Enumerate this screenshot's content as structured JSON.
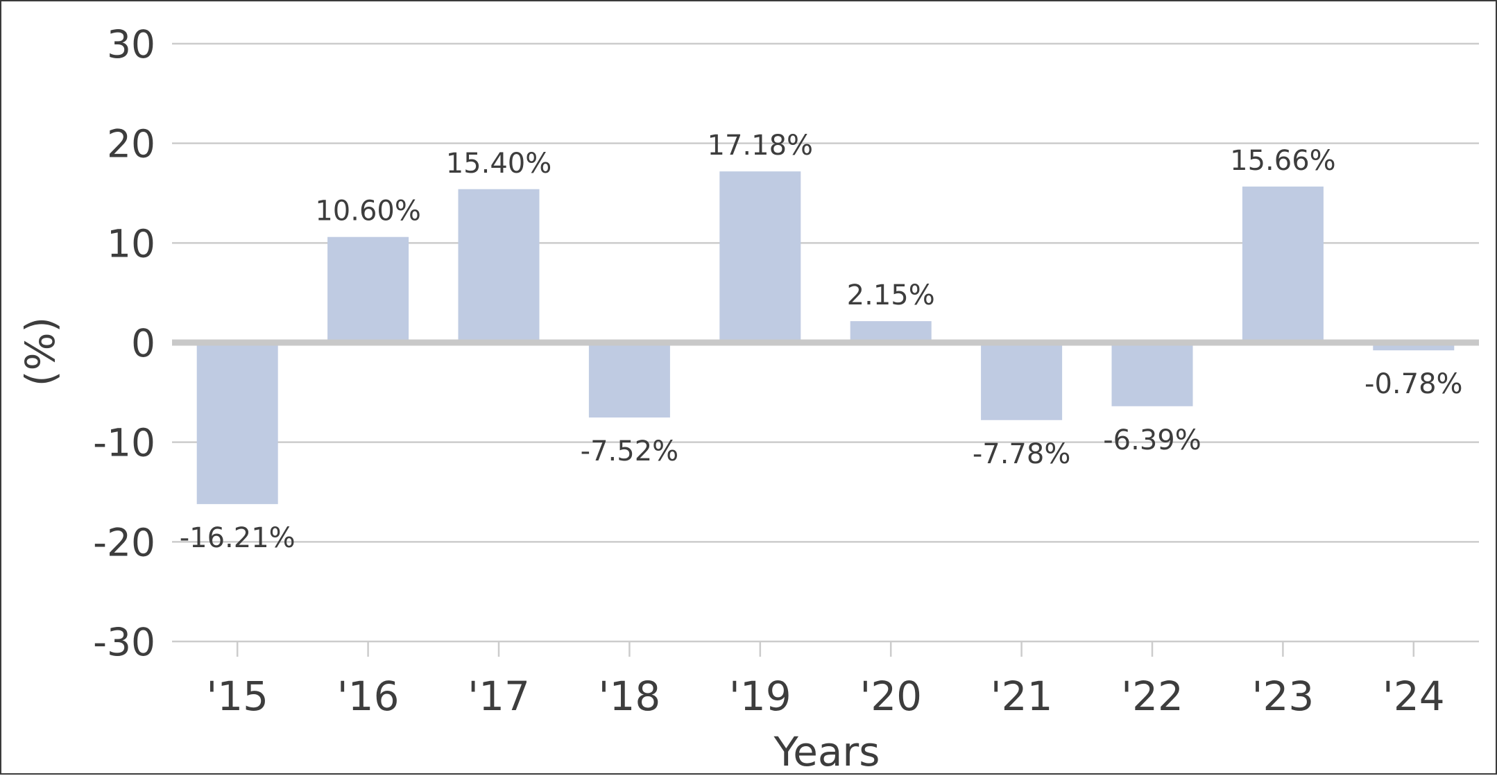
{
  "chart_data": {
    "type": "bar",
    "categories": [
      "'15",
      "'16",
      "'17",
      "'18",
      "'19",
      "'20",
      "'21",
      "'22",
      "'23",
      "'24"
    ],
    "values": [
      -16.21,
      10.6,
      15.4,
      -7.52,
      17.18,
      2.15,
      -7.78,
      -6.39,
      15.66,
      -0.78
    ],
    "data_labels": [
      "-16.21%",
      "10.60%",
      "15.40%",
      "-7.52%",
      "17.18%",
      "2.15%",
      "-7.78%",
      "-6.39%",
      "15.66%",
      "-0.78%"
    ],
    "title": "",
    "xlabel": "Years",
    "ylabel": "(%)",
    "ylim": [
      -30,
      30
    ],
    "yticks": [
      30,
      20,
      10,
      0,
      -10,
      -20,
      -30
    ],
    "ytick_labels": [
      "30",
      "20",
      "10",
      "0",
      "-10",
      "-20",
      "-30"
    ],
    "grid": true,
    "legend": "none",
    "colors": {
      "bar": "#bfcbe2",
      "grid": "#cccccc",
      "zero_line": "#c8c8c8",
      "text": "#3d3d3d",
      "frame": "#3a3a3a"
    }
  }
}
